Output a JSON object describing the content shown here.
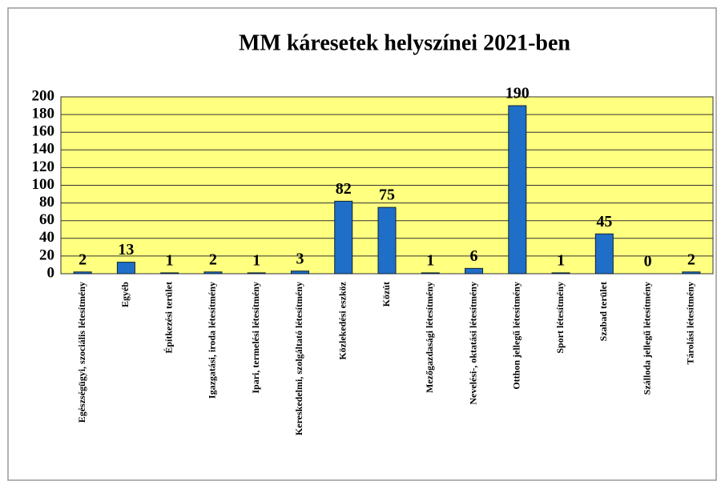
{
  "chart_data": {
    "type": "bar",
    "title": "MM káresetek helyszínei 2021-ben",
    "categories": [
      "Egészségügyi, szociális létesítmény",
      "Egyéb",
      "Építkezési terület",
      "Igazgatási, iroda létesítmény",
      "Ipari, termelési létesítmény",
      "Kereskedelmi, szolgáltató létesítmény",
      "Közlekedési eszköz",
      "Közút",
      "Mezőgazdasági létesítmény",
      "Nevelési-, oktatási létesítmény",
      "Otthon jellegű létesítmény",
      "Sport létesítmény",
      "Szabad terület",
      "Szálloda jellegű létesítmény",
      "Tárolási létesítmény"
    ],
    "values": [
      2,
      13,
      1,
      2,
      1,
      3,
      82,
      75,
      1,
      6,
      190,
      1,
      45,
      0,
      2
    ],
    "color": "#1f6fc8",
    "background": "#ffff80",
    "ylim": [
      0,
      200
    ],
    "yticks": [
      0,
      20,
      40,
      60,
      80,
      100,
      120,
      140,
      160,
      180,
      200
    ],
    "grid": true
  }
}
